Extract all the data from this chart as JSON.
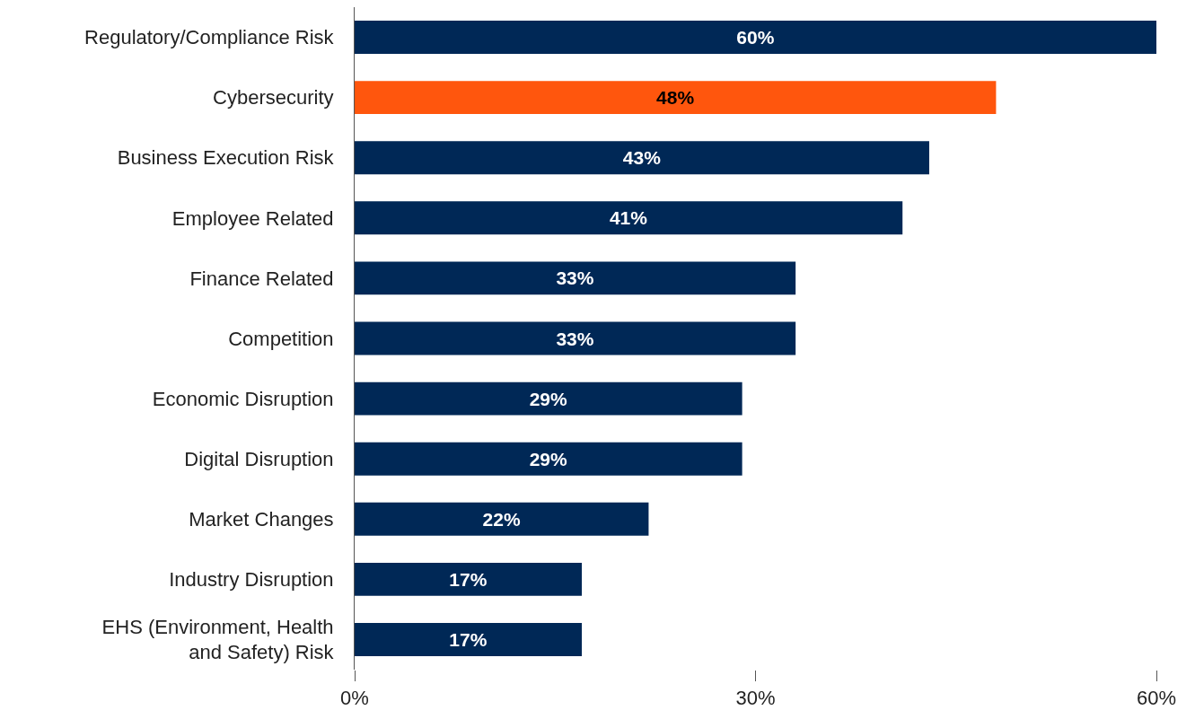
{
  "chart_data": {
    "type": "bar",
    "orientation": "horizontal",
    "categories": [
      "Regulatory/Compliance Risk",
      "Cybersecurity",
      "Business Execution Risk",
      "Employee Related",
      "Finance Related",
      "Competition",
      "Economic Disruption",
      "Digital Disruption",
      "Market Changes",
      "Industry Disruption",
      "EHS (Environment, Health\nand Safety) Risk"
    ],
    "values": [
      60,
      48,
      43,
      41,
      33,
      33,
      29,
      29,
      22,
      17,
      17
    ],
    "colors": [
      "#002856",
      "#ff560d",
      "#002856",
      "#002856",
      "#002856",
      "#002856",
      "#002856",
      "#002856",
      "#002856",
      "#002856",
      "#002856"
    ],
    "value_labels": [
      "60%",
      "48%",
      "43%",
      "41%",
      "33%",
      "33%",
      "29%",
      "29%",
      "22%",
      "17%",
      "17%"
    ],
    "xlim": [
      0,
      60
    ],
    "xticks": [
      {
        "value": 0,
        "label": "0%"
      },
      {
        "value": 30,
        "label": "30%"
      },
      {
        "value": 60,
        "label": "60%"
      }
    ],
    "grid": false
  }
}
